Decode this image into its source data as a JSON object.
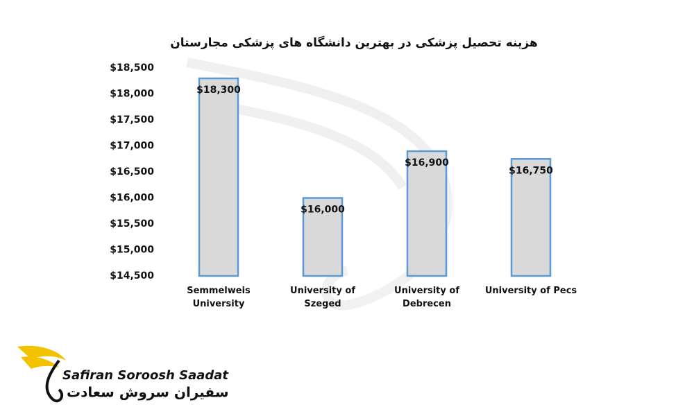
{
  "chart_data": {
    "type": "bar",
    "title": "هزینه تحصیل پزشکی در بهترین دانشگاه های پزشکی مجارستان",
    "categories": [
      "Semmelweis University",
      "University of Szeged",
      "University of Debrecen",
      "University of Pecs"
    ],
    "values": [
      18300,
      16000,
      16900,
      16750
    ],
    "value_labels": [
      "$18,300",
      "$16,000",
      "$16,900",
      "$16,750"
    ],
    "color": "#d9d9d9",
    "edge_color": "#5b9bd5",
    "ylim": [
      14500,
      18500
    ],
    "yticks": [
      {
        "value": 14500,
        "label": "$14,500"
      },
      {
        "value": 15000,
        "label": "$15,000"
      },
      {
        "value": 15500,
        "label": "$15,500"
      },
      {
        "value": 16000,
        "label": "$16,000"
      },
      {
        "value": 16500,
        "label": "$16,500"
      },
      {
        "value": 17000,
        "label": "$17,000"
      },
      {
        "value": 17500,
        "label": "$17,500"
      },
      {
        "value": 18000,
        "label": "$18,000"
      },
      {
        "value": 18500,
        "label": "$18,500"
      }
    ],
    "grid": false
  },
  "logo": {
    "name": "Safiran Soroosh Saadat",
    "name_fa": "سفیران سروش سعادت"
  }
}
